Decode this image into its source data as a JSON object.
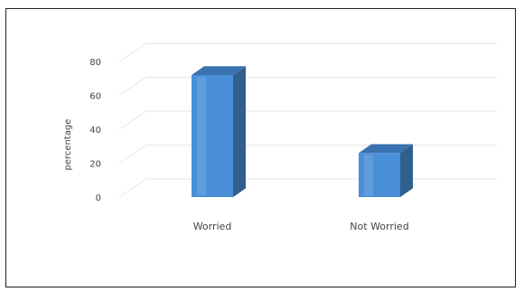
{
  "chart_data": {
    "type": "bar",
    "categories": [
      "Worried",
      "Not  Worried"
    ],
    "values": [
      72,
      26
    ],
    "xlabel": "",
    "ylabel": "percentage",
    "ylim": [
      0,
      80
    ],
    "yticks": [
      "0",
      "20",
      "40",
      "60",
      "80"
    ],
    "grid": true,
    "legend": "none",
    "style": "3d-column",
    "colors": {
      "bar_front": "#4a90d9",
      "bar_side": "#2f5f8f",
      "bar_top": "#3a72b0",
      "grid": "#e6e6e6"
    }
  }
}
